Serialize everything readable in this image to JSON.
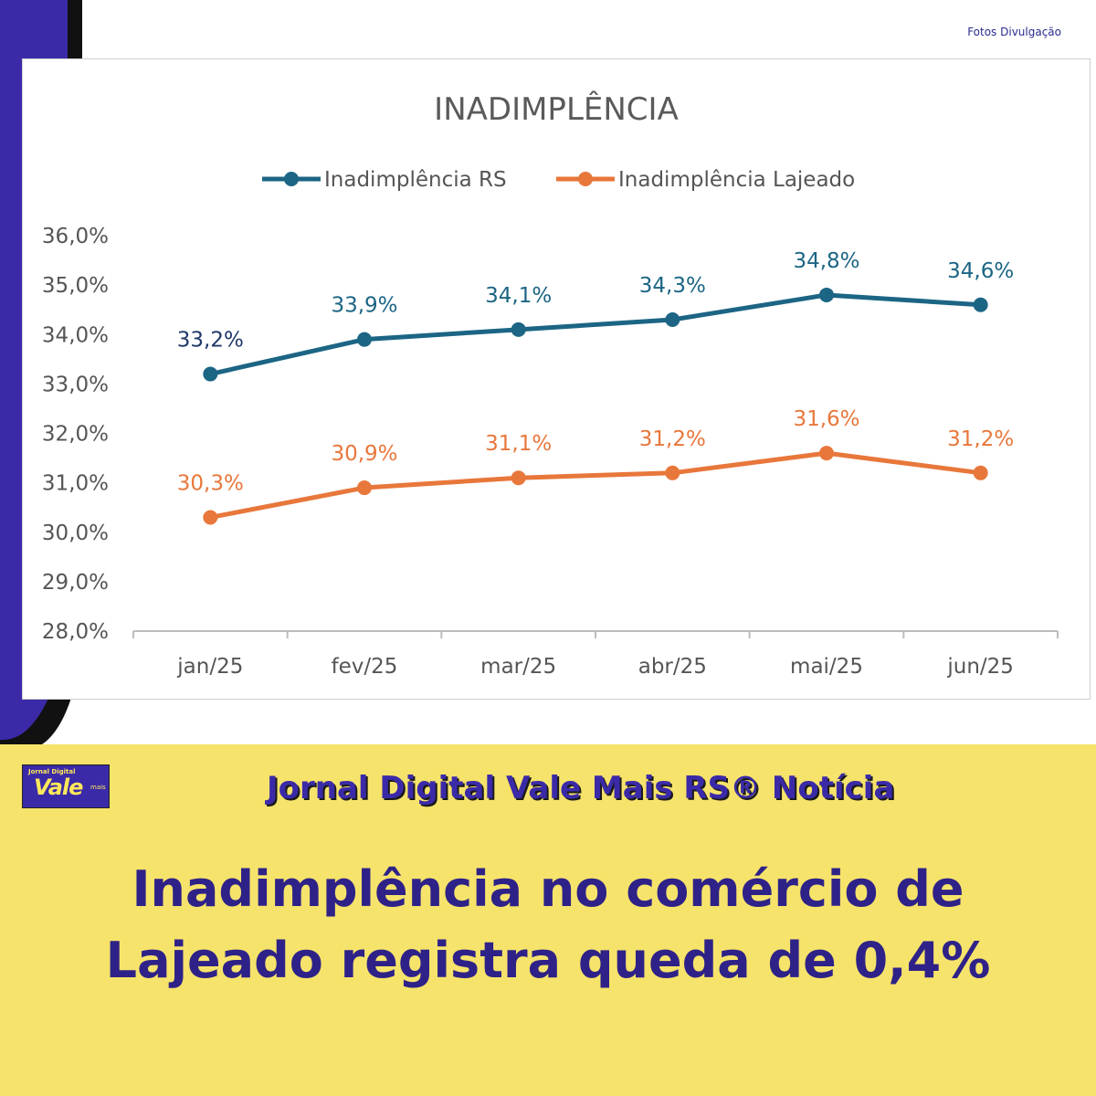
{
  "credit": "Fotos Divulgação",
  "chart_data": {
    "type": "line",
    "title": "INADIMPLÊNCIA",
    "categories": [
      "jan/25",
      "fev/25",
      "mar/25",
      "abr/25",
      "mai/25",
      "jun/25"
    ],
    "series": [
      {
        "name": "Inadimplência RS",
        "color": "#1c6584",
        "values": [
          33.2,
          33.9,
          34.1,
          34.3,
          34.8,
          34.6
        ],
        "labels": [
          "33,2%",
          "33,9%",
          "34,1%",
          "34,3%",
          "34,8%",
          "34,6%"
        ]
      },
      {
        "name": "Inadimplência Lajeado",
        "color": "#e8773b",
        "values": [
          30.3,
          30.9,
          31.1,
          31.2,
          31.6,
          31.2
        ],
        "labels": [
          "30,3%",
          "30,9%",
          "31,1%",
          "31,2%",
          "31,6%",
          "31,2%"
        ]
      }
    ],
    "ylim": [
      28,
      36
    ],
    "yticks": [
      "28,0%",
      "29,0%",
      "30,0%",
      "31,0%",
      "32,0%",
      "33,0%",
      "34,0%",
      "35,0%",
      "36,0%"
    ],
    "legend": "top-center",
    "grid": false
  },
  "banner": {
    "logo_small": "Jornal Digital",
    "logo_main": "Vale",
    "logo_sup": "mais",
    "brand": "Jornal Digital Vale Mais RS® Notícia",
    "headline_line1": "Inadimplência no comércio de",
    "headline_line2": "Lajeado registra queda de 0,4%"
  }
}
